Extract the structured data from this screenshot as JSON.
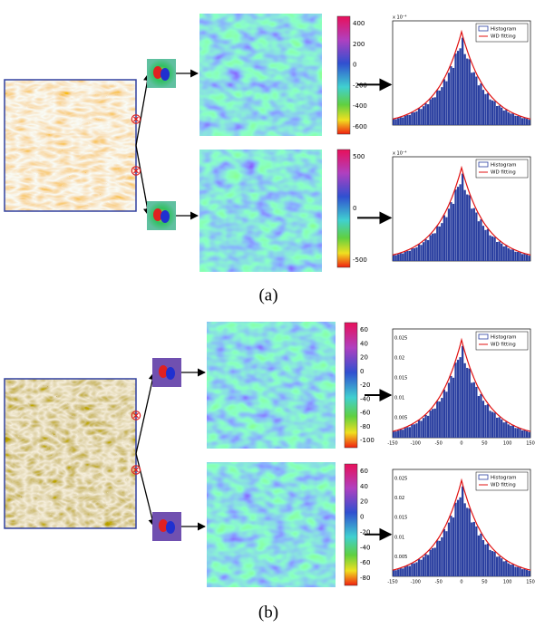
{
  "panels": [
    {
      "caption": "(a)",
      "rows": [
        {
          "operator": "⊗",
          "colorbar_ticks": [
            "400",
            "200",
            "0",
            "-200",
            "-400",
            "-600"
          ],
          "histogram": {
            "exponent": "x 10⁻⁴",
            "legend": [
              "Histogram",
              "WD fitting"
            ]
          }
        },
        {
          "operator": "⊗",
          "colorbar_ticks": [
            "500",
            "0",
            "-500"
          ],
          "histogram": {
            "exponent": "x 10⁻⁴",
            "legend": [
              "Histogram",
              "WD fitting"
            ]
          }
        }
      ]
    },
    {
      "caption": "(b)",
      "rows": [
        {
          "operator": "⊗",
          "colorbar_ticks": [
            "60",
            "40",
            "20",
            "0",
            "-20",
            "-40",
            "-60",
            "-80",
            "-100"
          ],
          "histogram": {
            "yticks": [
              "0.005",
              "0.01",
              "0.015",
              "0.02",
              "0.025"
            ],
            "xticks": [
              "-150",
              "-100",
              "-50",
              "0",
              "50",
              "100",
              "150"
            ],
            "legend": [
              "Histogram",
              "WD fitting"
            ]
          }
        },
        {
          "operator": "⊗",
          "colorbar_ticks": [
            "60",
            "40",
            "20",
            "0",
            "-20",
            "-40",
            "-60",
            "-80"
          ],
          "histogram": {
            "yticks": [
              "0.005",
              "0.01",
              "0.015",
              "0.02",
              "0.025"
            ],
            "xticks": [
              "-150",
              "-100",
              "-50",
              "0",
              "50",
              "100",
              "150"
            ],
            "legend": [
              "Histogram",
              "WD fitting"
            ]
          }
        }
      ]
    }
  ]
}
